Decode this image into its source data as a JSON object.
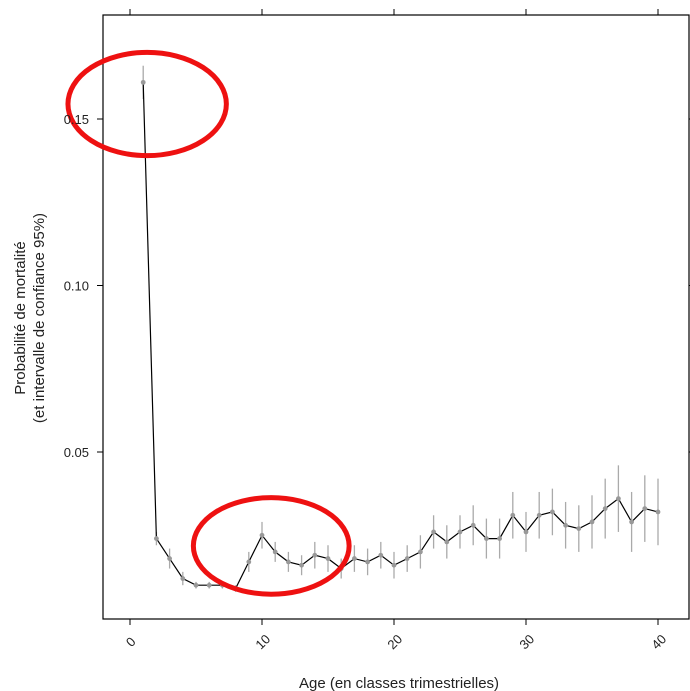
{
  "chart_data": {
    "type": "line",
    "xlabel": "Age (en classes trimestrielles)",
    "ylabel_lines": [
      "Probabilité de mortalité",
      "(et intervalle de confiance 95%)"
    ],
    "xlim": [
      -2,
      42
    ],
    "ylim": [
      0,
      0.16
    ],
    "xticks": [
      0,
      10,
      20,
      30,
      40
    ],
    "yticks": [
      0.05,
      0.1,
      0.15
    ],
    "ytick_labels": [
      "0.05",
      "0.10",
      "0.15"
    ],
    "xtick_labels": [
      "0",
      "10",
      "20",
      "30",
      "40"
    ],
    "series": [
      {
        "x": [
          1,
          2,
          3,
          4,
          5,
          6,
          7,
          8,
          9,
          10,
          11,
          12,
          13,
          14,
          15,
          16,
          17,
          18,
          19,
          20,
          21,
          22,
          23,
          24,
          25,
          26,
          27,
          28,
          29,
          30,
          31,
          32,
          33,
          34,
          35,
          36,
          37,
          38,
          39,
          40
        ],
        "y": [
          0.161,
          0.024,
          0.018,
          0.012,
          0.01,
          0.01,
          0.01,
          0.009,
          0.017,
          0.025,
          0.02,
          0.017,
          0.016,
          0.019,
          0.018,
          0.015,
          0.018,
          0.017,
          0.019,
          0.016,
          0.018,
          0.02,
          0.026,
          0.023,
          0.026,
          0.028,
          0.024,
          0.024,
          0.031,
          0.026,
          0.031,
          0.032,
          0.028,
          0.027,
          0.029,
          0.033,
          0.036,
          0.029,
          0.033,
          0.032
        ],
        "ci_low": [
          0.156,
          0.022,
          0.015,
          0.01,
          0.009,
          0.009,
          0.009,
          0.008,
          0.014,
          0.021,
          0.017,
          0.014,
          0.013,
          0.015,
          0.014,
          0.012,
          0.014,
          0.013,
          0.015,
          0.012,
          0.014,
          0.015,
          0.021,
          0.018,
          0.021,
          0.022,
          0.018,
          0.018,
          0.024,
          0.02,
          0.024,
          0.025,
          0.021,
          0.02,
          0.021,
          0.024,
          0.026,
          0.02,
          0.023,
          0.022
        ],
        "ci_high": [
          0.166,
          0.026,
          0.021,
          0.014,
          0.011,
          0.011,
          0.011,
          0.01,
          0.02,
          0.029,
          0.023,
          0.02,
          0.019,
          0.023,
          0.022,
          0.018,
          0.022,
          0.021,
          0.023,
          0.02,
          0.022,
          0.025,
          0.031,
          0.028,
          0.031,
          0.034,
          0.03,
          0.03,
          0.038,
          0.032,
          0.038,
          0.039,
          0.035,
          0.034,
          0.037,
          0.042,
          0.046,
          0.038,
          0.043,
          0.042
        ]
      }
    ],
    "annotations": [
      {
        "type": "ellipse",
        "center_x": 1.3,
        "center_y": 0.1545,
        "rx": 6.0,
        "ry": 0.0155,
        "color": "#ee1111"
      },
      {
        "type": "ellipse",
        "center_x": 10.7,
        "center_y": 0.0218,
        "rx": 5.9,
        "ry": 0.0145,
        "color": "#ee1111"
      }
    ],
    "line_color": "#000000",
    "point_color": "#999999",
    "ci_color": "#aaaaaa"
  }
}
